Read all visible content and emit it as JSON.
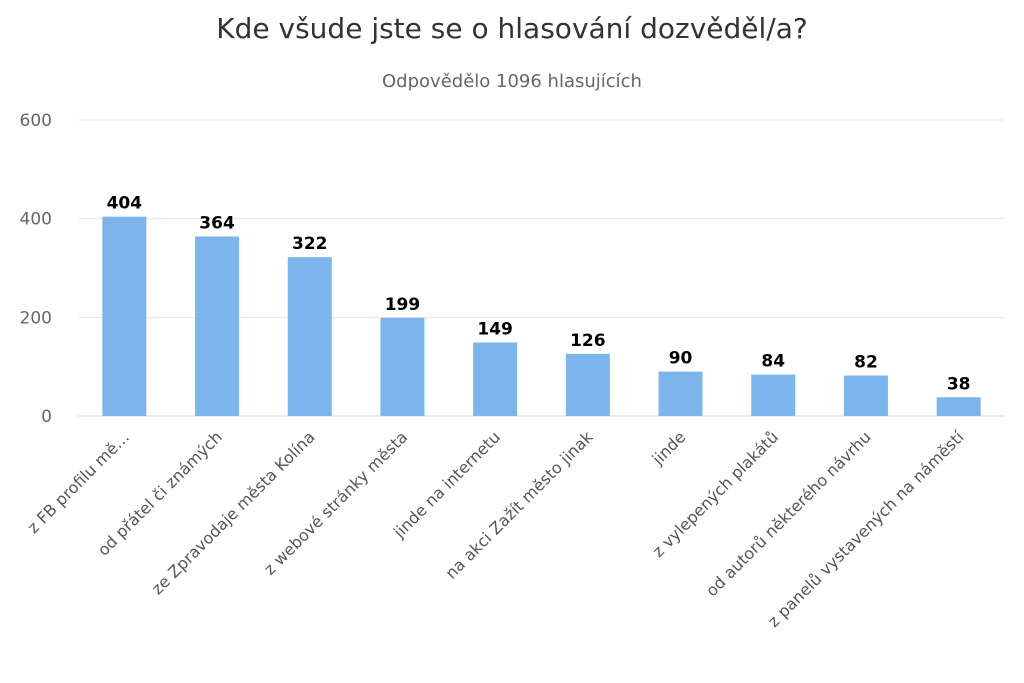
{
  "chart_data": {
    "type": "bar",
    "title": "Kde všude jste se o hlasování dozvěděl/a?",
    "subtitle": "Odpovědělo 1096 hlasujících",
    "categories": [
      "z FB profilu mě…",
      "od přátel či známých",
      "ze Zpravodaje města Kolína",
      "z webové stránky města",
      "jinde na internetu",
      "na akci Zažít město jinak",
      "jinde",
      "z vylepených plakátů",
      "od autorů některého návrhu",
      "z panelů vystavených na náměstí"
    ],
    "values": [
      404,
      364,
      322,
      199,
      149,
      126,
      90,
      84,
      82,
      38
    ],
    "ylim": [
      0,
      600
    ],
    "yticks": [
      0,
      200,
      400,
      600
    ],
    "xlabel": "",
    "ylabel": "",
    "grid": true,
    "legend": "none",
    "bar_color": "#7cb5ec"
  }
}
